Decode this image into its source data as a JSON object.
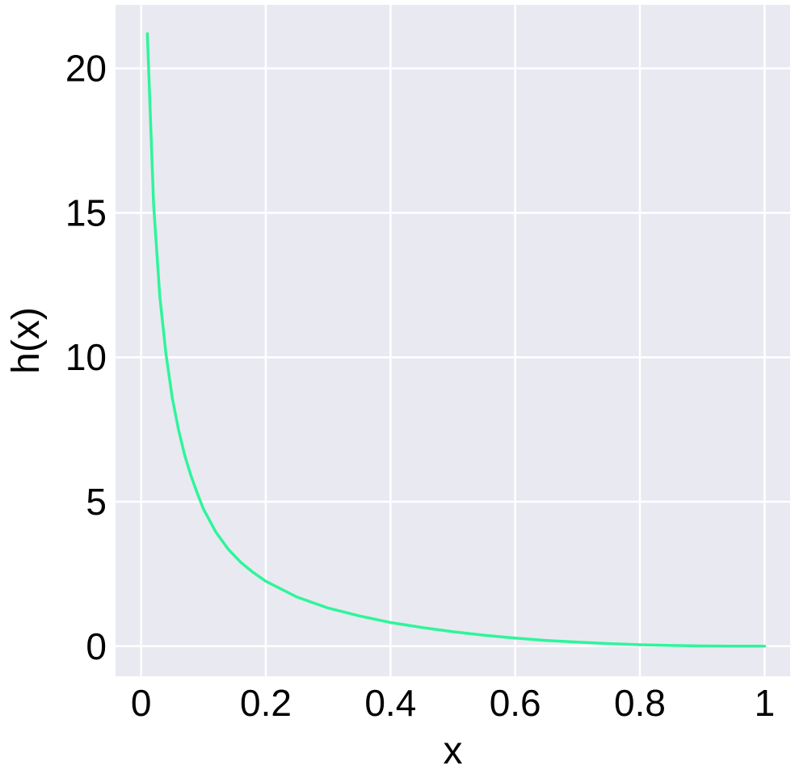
{
  "chart_data": {
    "type": "line",
    "title": "",
    "xlabel": "x",
    "ylabel": "h(x)",
    "xlim": [
      -0.041,
      1.041
    ],
    "ylim": [
      -1.04,
      22.2
    ],
    "x_ticks": [
      {
        "value": 0,
        "label": "0"
      },
      {
        "value": 0.2,
        "label": "0.2"
      },
      {
        "value": 0.4,
        "label": "0.4"
      },
      {
        "value": 0.6,
        "label": "0.6"
      },
      {
        "value": 0.8,
        "label": "0.8"
      },
      {
        "value": 1,
        "label": "1"
      }
    ],
    "y_ticks": [
      {
        "value": 0,
        "label": "0"
      },
      {
        "value": 5,
        "label": "5"
      },
      {
        "value": 10,
        "label": "10"
      },
      {
        "value": 15,
        "label": "15"
      },
      {
        "value": 20,
        "label": "20"
      }
    ],
    "grid": true,
    "legend": "none",
    "colors": {
      "background": "#e9e9f1",
      "grid": "#ffffff",
      "line": "#2ef59b"
    },
    "series": [
      {
        "x": [
          0.01,
          0.02,
          0.03,
          0.04,
          0.05,
          0.06,
          0.07,
          0.08,
          0.09,
          0.1,
          0.12,
          0.14,
          0.16,
          0.18,
          0.2,
          0.25,
          0.3,
          0.35,
          0.4,
          0.45,
          0.5,
          0.55,
          0.6,
          0.65,
          0.7,
          0.75,
          0.8,
          0.85,
          0.9,
          0.95,
          1.0
        ],
        "y": [
          21.2,
          15.3,
          12.1,
          10.1,
          8.6,
          7.5,
          6.6,
          5.9,
          5.3,
          4.75,
          3.95,
          3.35,
          2.9,
          2.55,
          2.25,
          1.7,
          1.32,
          1.05,
          0.82,
          0.65,
          0.5,
          0.38,
          0.28,
          0.2,
          0.14,
          0.09,
          0.05,
          0.025,
          0.01,
          0.003,
          0.0
        ]
      }
    ]
  }
}
